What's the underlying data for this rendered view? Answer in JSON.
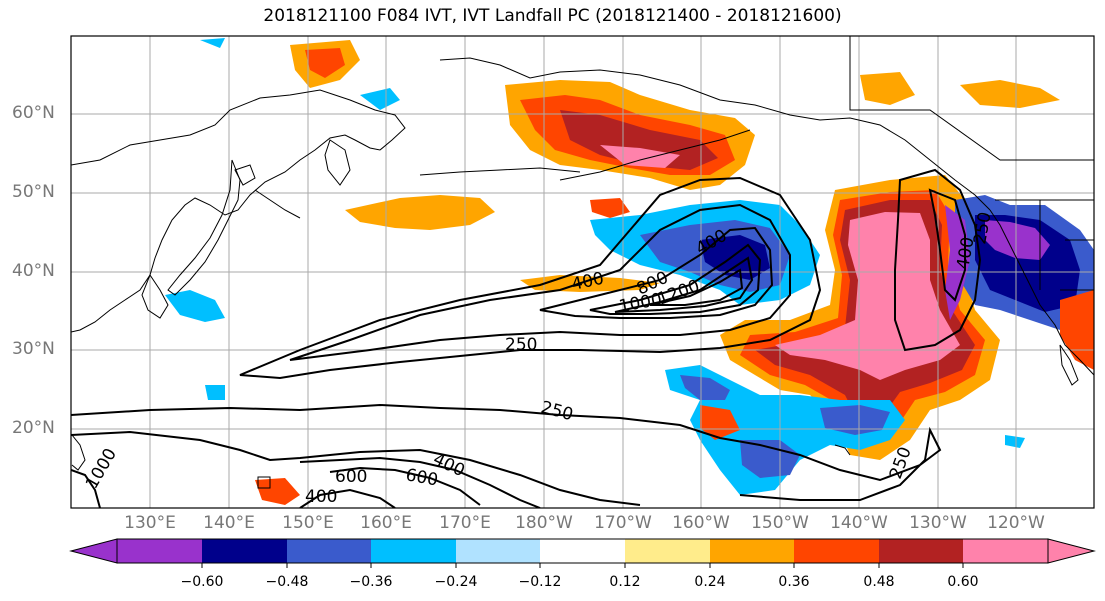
{
  "title": "2018121100 F084 IVT, IVT Landfall PC (2018121400 - 2018121600)",
  "lat_labels": [
    "60°N",
    "50°N",
    "40°N",
    "30°N",
    "20°N"
  ],
  "lon_labels": [
    "130°E",
    "140°E",
    "150°E",
    "160°E",
    "170°E",
    "180°W",
    "170°W",
    "160°W",
    "150°W",
    "140°W",
    "130°W",
    "120°W"
  ],
  "contour_labels": [
    "400",
    "800",
    "1000",
    "1200",
    "400",
    "250",
    "250",
    "600",
    "600",
    "400",
    "400",
    "250",
    "400",
    "250",
    "1000"
  ],
  "colorbar": {
    "ticks": [
      "−0.60",
      "−0.48",
      "−0.36",
      "−0.24",
      "−0.12",
      "0.12",
      "0.24",
      "0.36",
      "0.48",
      "0.60"
    ],
    "colors": [
      "#9932cc",
      "#00008b",
      "#3a5bcc",
      "#00bfff",
      "#b0e2ff",
      "#ffffff",
      "#ffec8b",
      "#ffa500",
      "#ff4500",
      "#b22222",
      "#ff82ab"
    ]
  },
  "colors": {
    "coast": "#000000",
    "grid": "#aaaaaa",
    "contour": "#000000"
  }
}
